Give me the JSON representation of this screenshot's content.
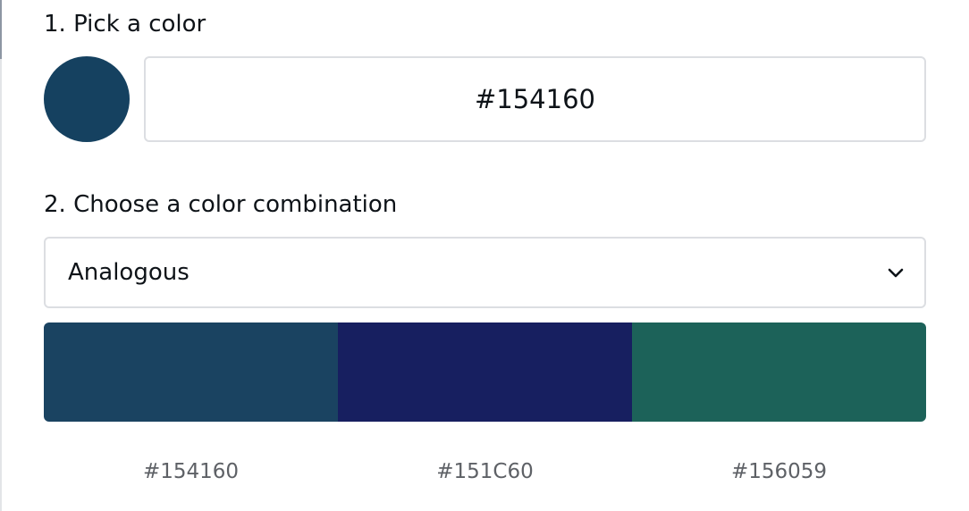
{
  "step1": {
    "label": "1. Pick a color",
    "selected_color": "#154160",
    "hex_value": "#154160"
  },
  "step2": {
    "label": "2. Choose a color combination",
    "combination": "Analogous",
    "chevron_icon": "chevron-down-icon"
  },
  "palette": [
    {
      "hex": "#154160",
      "color": "#1a4361"
    },
    {
      "hex": "#151C60",
      "color": "#171f60"
    },
    {
      "hex": "#156059",
      "color": "#1c6259"
    }
  ]
}
